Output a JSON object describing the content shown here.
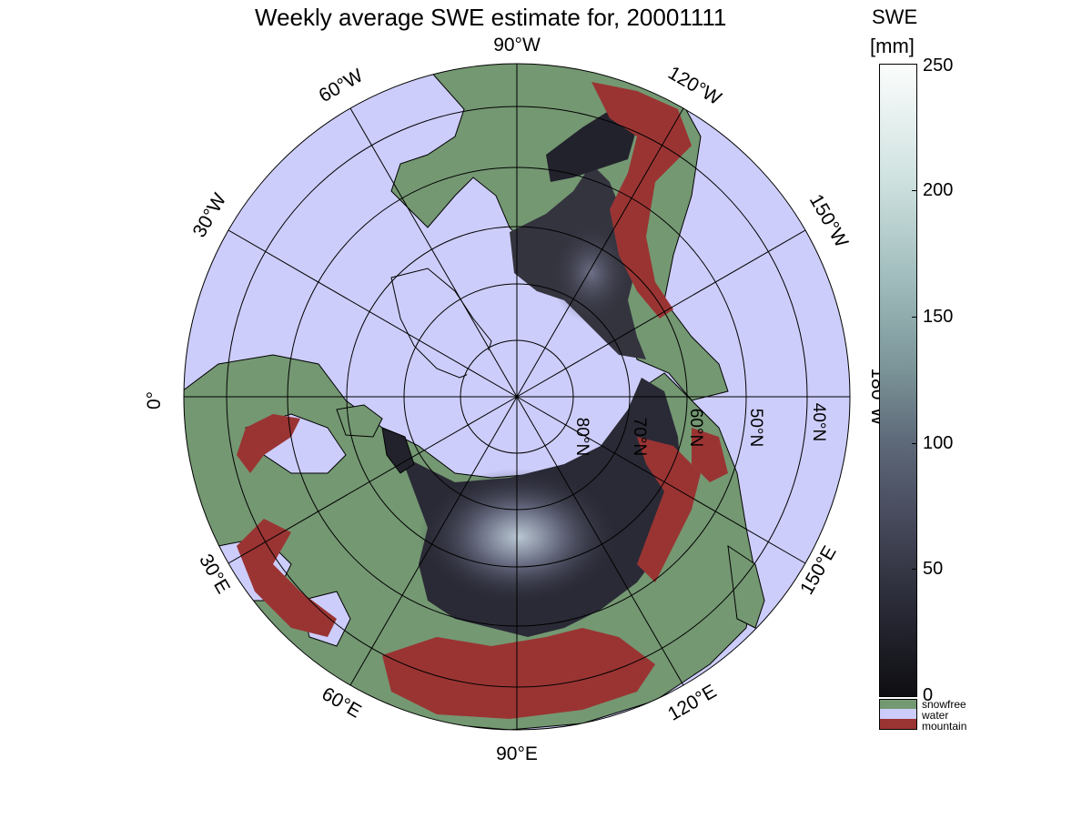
{
  "title": "Weekly average SWE estimate for, 20001111",
  "colorbar": {
    "title_line1": "SWE",
    "title_line2": "[mm]",
    "ticks": [
      "250",
      "200",
      "150",
      "100",
      "50",
      "0"
    ],
    "categories": [
      {
        "label": "snowfree",
        "color": "#749872"
      },
      {
        "label": "water",
        "color": "#cdcdfb"
      },
      {
        "label": "mountain",
        "color": "#9a3433"
      }
    ]
  },
  "map": {
    "projection": "north-polar-stereographic",
    "colors": {
      "water": "#cdcdfb",
      "land": "#749872",
      "snow_dark": "#22222c",
      "snow_mid": "#4c4c60",
      "snow_light": "#9aa6b6",
      "mountain": "#9a3433"
    },
    "longitude_labels": {
      "w90": "90°W",
      "w120": "120°W",
      "w60": "60°W",
      "w150": "150°W",
      "w30": "30°W",
      "w180": "180°W",
      "zero": "0°",
      "e150": "150°E",
      "e30": "30°E",
      "e120": "120°E",
      "e60": "60°E",
      "e90": "90°E"
    },
    "latitude_labels": [
      "80°N",
      "70°N",
      "60°N",
      "50°N",
      "40°N"
    ]
  }
}
